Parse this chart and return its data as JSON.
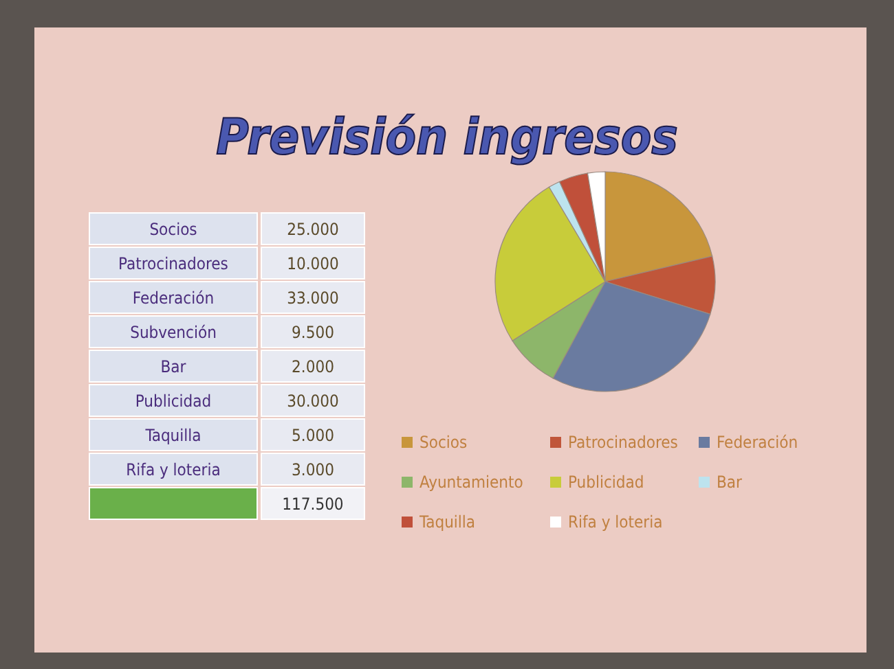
{
  "chart_data": [
    {
      "type": "other",
      "title": "Previsión ingresos",
      "categories": [
        "Socios",
        "Patrocinadores",
        "Federación",
        "Subvención",
        "Bar",
        "Publicidad",
        "Taquilla",
        "Rifa y loteria"
      ],
      "value_labels": [
        "25.000",
        "10.000",
        "33.000",
        "9.500",
        "2.000",
        "30.000",
        "5.000",
        "3.000"
      ],
      "totals": [
        "117.500"
      ]
    },
    {
      "type": "pie",
      "categories": [
        "Socios",
        "Patrocinadores",
        "Federación",
        "Ayuntamiento",
        "Publicidad",
        "Bar",
        "Taquilla",
        "Rifa y loteria"
      ],
      "values": [
        21.28,
        8.51,
        28.08,
        8.09,
        25.53,
        1.7,
        4.26,
        2.55
      ],
      "colors": [
        "#c8963c",
        "#c0563a",
        "#6a7ba0",
        "#8db66a",
        "#c8cc3a",
        "#bde3ee",
        "#c0503a",
        "#ffffff"
      ],
      "legend": "bottom"
    }
  ]
}
